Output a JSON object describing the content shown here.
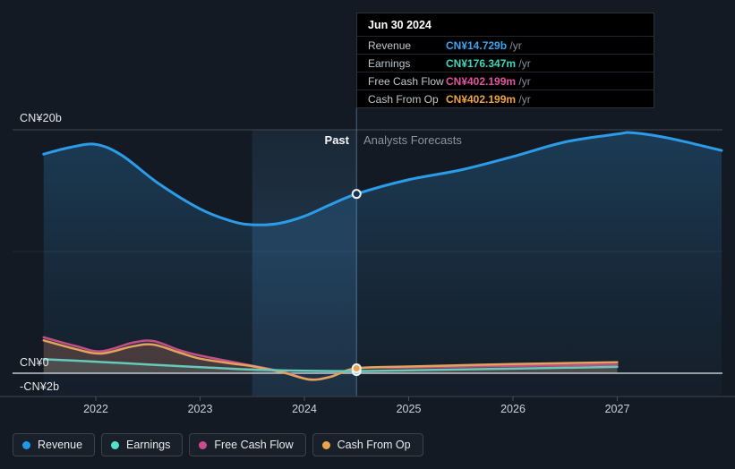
{
  "tooltip": {
    "date": "Jun 30 2024",
    "rows": [
      {
        "label": "Revenue",
        "value": "CN¥14.729b",
        "suffix": " /yr",
        "color": "#3aa3f2"
      },
      {
        "label": "Earnings",
        "value": "CN¥176.347m",
        "suffix": " /yr",
        "color": "#40d7bd"
      },
      {
        "label": "Free Cash Flow",
        "value": "CN¥402.199m",
        "suffix": " /yr",
        "color": "#e2549e"
      },
      {
        "label": "Cash From Op",
        "value": "CN¥402.199m",
        "suffix": " /yr",
        "color": "#eea443"
      }
    ]
  },
  "annotations": {
    "past_label": "Past",
    "forecast_label": "Analysts Forecasts"
  },
  "y_axis": {
    "labels": [
      {
        "text": "CN¥20b",
        "value": 20
      },
      {
        "text": "CN¥0",
        "value": 0
      },
      {
        "text": "-CN¥2b",
        "value": -2
      }
    ]
  },
  "x_axis": {
    "ticks": [
      "2022",
      "2023",
      "2024",
      "2025",
      "2026",
      "2027"
    ]
  },
  "legend": [
    {
      "label": "Revenue",
      "color": "#1e9be8"
    },
    {
      "label": "Earnings",
      "color": "#52e0c8"
    },
    {
      "label": "Free Cash Flow",
      "color": "#cb4b8f"
    },
    {
      "label": "Cash From Op",
      "color": "#e9a450"
    }
  ],
  "chart_data": {
    "type": "line",
    "title": "",
    "unit": "CN¥ billions per year",
    "x_range": [
      2021.5,
      2028
    ],
    "x_ticks": [
      2022,
      2023,
      2024,
      2025,
      2026,
      2027
    ],
    "ylim": [
      -2,
      20
    ],
    "y_gridline_values": [
      20,
      10,
      0
    ],
    "divider_x": 2024.5,
    "divider_date": "Jun 30 2024",
    "highlight_band": [
      2023.5,
      2024.5
    ],
    "marker_x": 2024.5,
    "grid": "horizontal-only",
    "legend_position": "bottom",
    "series": [
      {
        "name": "Revenue",
        "key": "revenue",
        "color": "#2d9ce8",
        "fill": "blue-gradient",
        "marker_value": 14.729,
        "points": [
          [
            2021.5,
            18.0
          ],
          [
            2021.75,
            18.55
          ],
          [
            2022.0,
            18.8
          ],
          [
            2022.25,
            17.9
          ],
          [
            2022.6,
            15.6
          ],
          [
            2023.0,
            13.5
          ],
          [
            2023.3,
            12.5
          ],
          [
            2023.5,
            12.2
          ],
          [
            2023.75,
            12.3
          ],
          [
            2024.0,
            12.9
          ],
          [
            2024.25,
            13.85
          ],
          [
            2024.5,
            14.729
          ],
          [
            2025.0,
            15.9
          ],
          [
            2025.5,
            16.7
          ],
          [
            2026.0,
            17.8
          ],
          [
            2026.5,
            19.0
          ],
          [
            2027.0,
            19.65
          ],
          [
            2027.15,
            19.75
          ],
          [
            2027.5,
            19.3
          ],
          [
            2028.0,
            18.3
          ]
        ]
      },
      {
        "name": "Free Cash Flow",
        "key": "free_cash_flow",
        "color": "#c24f86",
        "fill": "rgba(200,90,140,0.14)",
        "marker_value": 0.402199,
        "points": [
          [
            2021.5,
            2.95
          ],
          [
            2021.8,
            2.25
          ],
          [
            2022.05,
            1.8
          ],
          [
            2022.35,
            2.5
          ],
          [
            2022.55,
            2.65
          ],
          [
            2022.8,
            1.9
          ],
          [
            2023.0,
            1.45
          ],
          [
            2023.3,
            0.95
          ],
          [
            2023.5,
            0.62
          ],
          [
            2023.8,
            0.1
          ],
          [
            2024.05,
            -0.5
          ],
          [
            2024.25,
            -0.28
          ],
          [
            2024.5,
            0.402
          ],
          [
            2025.0,
            0.48
          ],
          [
            2026.0,
            0.6
          ],
          [
            2027.0,
            0.7
          ]
        ]
      },
      {
        "name": "Cash From Op",
        "key": "cash_from_op",
        "color": "#e2a45c",
        "fill": "rgba(230,160,80,0.14)",
        "marker_value": 0.402199,
        "points": [
          [
            2021.5,
            2.7
          ],
          [
            2021.8,
            2.0
          ],
          [
            2022.05,
            1.62
          ],
          [
            2022.35,
            2.2
          ],
          [
            2022.55,
            2.35
          ],
          [
            2022.8,
            1.7
          ],
          [
            2023.0,
            1.2
          ],
          [
            2023.3,
            0.8
          ],
          [
            2023.5,
            0.58
          ],
          [
            2023.8,
            0.05
          ],
          [
            2024.05,
            -0.52
          ],
          [
            2024.25,
            -0.3
          ],
          [
            2024.5,
            0.402
          ],
          [
            2025.0,
            0.55
          ],
          [
            2026.0,
            0.75
          ],
          [
            2027.0,
            0.9
          ]
        ]
      },
      {
        "name": "Earnings",
        "key": "earnings",
        "color": "#66c9b9",
        "fill": "rgba(110,200,185,0.14)",
        "marker_value": 0.176347,
        "points": [
          [
            2021.5,
            1.15
          ],
          [
            2022.0,
            0.95
          ],
          [
            2022.5,
            0.72
          ],
          [
            2023.0,
            0.5
          ],
          [
            2023.5,
            0.3
          ],
          [
            2024.0,
            0.2
          ],
          [
            2024.5,
            0.176
          ],
          [
            2025.0,
            0.24
          ],
          [
            2026.0,
            0.38
          ],
          [
            2027.0,
            0.52
          ]
        ]
      }
    ]
  }
}
